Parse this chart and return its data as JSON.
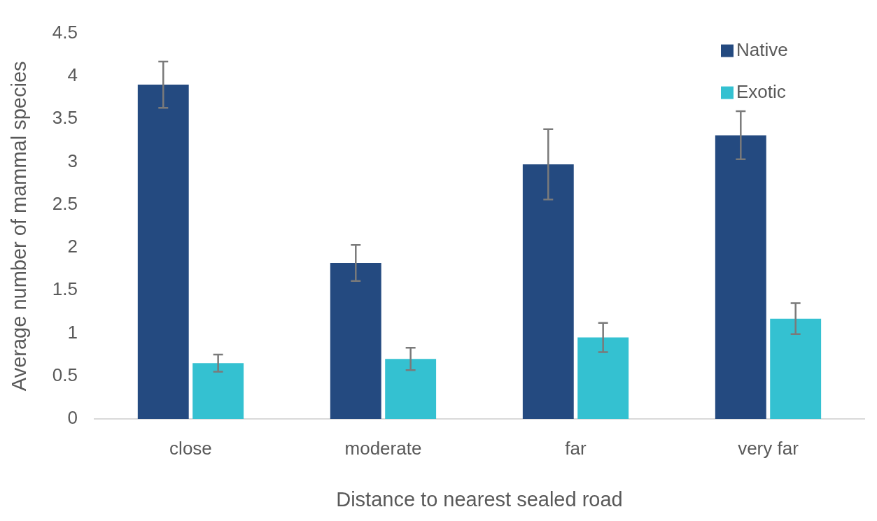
{
  "chart_data": {
    "type": "bar",
    "xlabel": "Distance to nearest sealed road",
    "ylabel": "Average number of mammal species",
    "categories": [
      "close",
      "moderate",
      "far",
      "very far"
    ],
    "series": [
      {
        "name": "Native",
        "color": "#244a80",
        "values": [
          3.9,
          1.82,
          2.97,
          3.31
        ],
        "errors": [
          0.27,
          0.21,
          0.41,
          0.28
        ]
      },
      {
        "name": "Exotic",
        "color": "#34c1d1",
        "values": [
          0.65,
          0.7,
          0.95,
          1.17
        ],
        "errors": [
          0.1,
          0.13,
          0.17,
          0.18
        ]
      }
    ],
    "ylim": [
      0,
      4.5
    ],
    "yticks": [
      0,
      0.5,
      1,
      1.5,
      2,
      2.5,
      3,
      3.5,
      4,
      4.5
    ],
    "grid": false,
    "legend": "top right"
  }
}
